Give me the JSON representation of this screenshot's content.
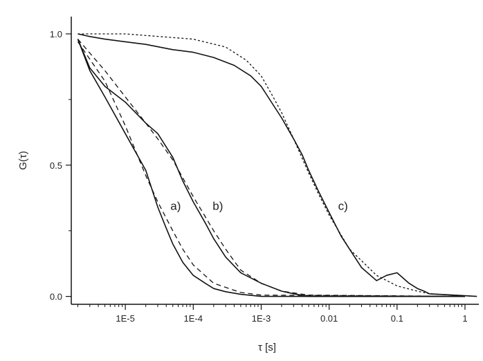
{
  "chart_data": {
    "type": "line",
    "title": "",
    "xlabel": "τ [s]",
    "ylabel": "G(τ)",
    "xscale": "log",
    "xlim": [
      1.6e-06,
      1.6
    ],
    "ylim": [
      -0.03,
      1.05
    ],
    "grid": false,
    "x_ticks": [
      {
        "value": 1e-05,
        "label": "1E-5"
      },
      {
        "value": 0.0001,
        "label": "1E-4"
      },
      {
        "value": 0.001,
        "label": "1E-3"
      },
      {
        "value": 0.01,
        "label": "0.01"
      },
      {
        "value": 0.1,
        "label": "0.1"
      },
      {
        "value": 1,
        "label": "1"
      }
    ],
    "y_ticks": [
      {
        "value": 0.0,
        "label": "0.0"
      },
      {
        "value": 0.5,
        "label": "0.5"
      },
      {
        "value": 1.0,
        "label": "1.0"
      }
    ],
    "annotations": [
      {
        "text": "a)",
        "x": 5.5e-05,
        "y": 0.33
      },
      {
        "text": "b)",
        "x": 0.00023,
        "y": 0.33
      },
      {
        "text": "c)",
        "x": 0.016,
        "y": 0.33
      }
    ],
    "series": [
      {
        "style": "solid",
        "color": "#111111",
        "x": [
          2e-06,
          3e-06,
          5e-06,
          1e-05,
          2e-05,
          3e-05,
          4e-05,
          5e-05,
          7e-05,
          0.0001,
          0.00015,
          0.0002,
          0.0003,
          0.0005,
          0.001,
          1
        ],
        "y": [
          0.98,
          0.86,
          0.76,
          0.62,
          0.48,
          0.34,
          0.26,
          0.2,
          0.13,
          0.08,
          0.05,
          0.03,
          0.018,
          0.008,
          0.0,
          0.0
        ]
      },
      {
        "style": "solid",
        "color": "#111111",
        "x": [
          2e-06,
          3e-06,
          5e-06,
          1e-05,
          2e-05,
          3e-05,
          5e-05,
          7e-05,
          0.0001,
          0.00015,
          0.0002,
          0.0003,
          0.0005,
          0.001,
          0.002,
          0.003,
          0.005,
          1
        ],
        "y": [
          0.98,
          0.87,
          0.8,
          0.74,
          0.66,
          0.62,
          0.53,
          0.44,
          0.36,
          0.28,
          0.22,
          0.15,
          0.09,
          0.05,
          0.02,
          0.01,
          0.0,
          0.0
        ]
      },
      {
        "style": "solid",
        "color": "#111111",
        "x": [
          2e-06,
          3e-06,
          5e-06,
          1e-05,
          2e-05,
          5e-05,
          0.0001,
          0.0002,
          0.0004,
          0.0007,
          0.001,
          0.0015,
          0.002,
          0.003,
          0.004,
          0.005,
          0.007,
          0.01,
          0.015,
          0.02,
          0.03,
          0.05,
          0.07,
          0.1,
          0.15,
          0.2,
          0.25,
          0.3,
          1.5
        ],
        "y": [
          1.0,
          0.99,
          0.98,
          0.97,
          0.96,
          0.94,
          0.93,
          0.91,
          0.88,
          0.84,
          0.8,
          0.73,
          0.68,
          0.6,
          0.54,
          0.48,
          0.4,
          0.32,
          0.23,
          0.18,
          0.11,
          0.06,
          0.08,
          0.09,
          0.05,
          0.03,
          0.02,
          0.01,
          0.0
        ]
      },
      {
        "style": "dashed",
        "color": "#111111",
        "x": [
          2e-06,
          5e-06,
          1e-05,
          2e-05,
          3e-05,
          5e-05,
          7e-05,
          0.0001,
          0.0002,
          0.0005,
          0.001,
          1
        ],
        "y": [
          0.97,
          0.82,
          0.65,
          0.46,
          0.36,
          0.25,
          0.18,
          0.12,
          0.05,
          0.015,
          0.005,
          0.0
        ]
      },
      {
        "style": "dashed",
        "color": "#111111",
        "x": [
          2e-06,
          5e-06,
          1e-05,
          2e-05,
          3e-05,
          5e-05,
          0.0001,
          0.0002,
          0.0003,
          0.0005,
          0.001,
          0.002,
          0.005,
          1
        ],
        "y": [
          0.98,
          0.86,
          0.76,
          0.66,
          0.6,
          0.52,
          0.38,
          0.25,
          0.18,
          0.1,
          0.05,
          0.02,
          0.005,
          0.0
        ]
      },
      {
        "style": "dotted",
        "color": "#111111",
        "x": [
          2e-06,
          1e-05,
          0.0001,
          0.0003,
          0.0006,
          0.001,
          0.0015,
          0.002,
          0.003,
          0.005,
          0.007,
          0.01,
          0.02,
          0.05,
          0.1,
          0.2,
          0.3,
          1.5
        ],
        "y": [
          1.0,
          1.0,
          0.98,
          0.95,
          0.9,
          0.84,
          0.76,
          0.7,
          0.6,
          0.47,
          0.39,
          0.31,
          0.18,
          0.08,
          0.04,
          0.02,
          0.01,
          0.0
        ]
      }
    ]
  }
}
